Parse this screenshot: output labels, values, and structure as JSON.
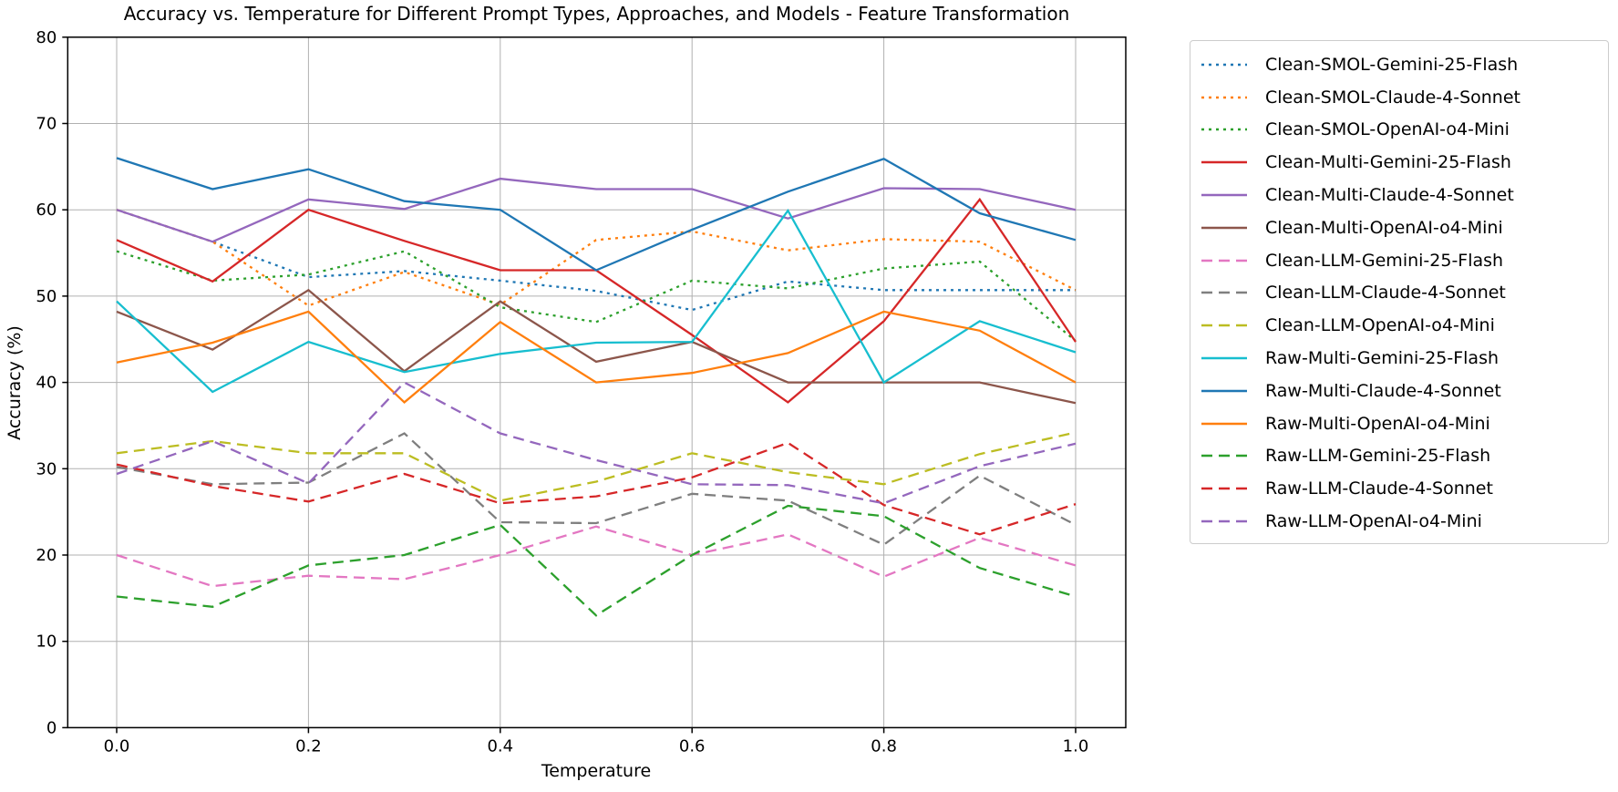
{
  "title": "Accuracy vs. Temperature for Different Prompt Types, Approaches, and Models - Feature Transformation",
  "chart_data": {
    "type": "line",
    "title": "Accuracy vs. Temperature for Different Prompt Types, Approaches, and Models - Feature Transformation",
    "xlabel": "Temperature",
    "ylabel": "Accuracy (%)",
    "ylim": [
      0,
      80
    ],
    "xlim": [
      -0.05,
      1.05
    ],
    "grid": true,
    "legend_position": "outside-right",
    "x_tick_labels": [
      "0.0",
      "0.2",
      "0.4",
      "0.6",
      "0.8",
      "1.0"
    ],
    "x_tick_values": [
      0.0,
      0.2,
      0.4,
      0.6,
      0.8,
      1.0
    ],
    "y_tick_labels": [
      "0",
      "10",
      "20",
      "30",
      "40",
      "50",
      "60",
      "70",
      "80"
    ],
    "y_tick_values": [
      0,
      10,
      20,
      30,
      40,
      50,
      60,
      70,
      80
    ],
    "x": [
      0.0,
      0.1,
      0.2,
      0.3,
      0.4,
      0.5,
      0.6,
      0.7,
      0.8,
      0.9,
      1.0
    ],
    "series": [
      {
        "name": "Clean-SMOL-Gemini-25-Flash",
        "color": "#1f77b4",
        "style": "dotted",
        "values": [
          60.0,
          56.3,
          52.2,
          52.9,
          51.8,
          50.6,
          48.4,
          51.7,
          50.7,
          50.7,
          50.7
        ]
      },
      {
        "name": "Clean-SMOL-Claude-4-Sonnet",
        "color": "#ff7f0e",
        "style": "dotted",
        "values": [
          60.0,
          56.3,
          48.9,
          52.8,
          49.0,
          56.5,
          57.5,
          55.3,
          56.6,
          56.3,
          50.7
        ]
      },
      {
        "name": "Clean-SMOL-OpenAI-o4-Mini",
        "color": "#2ca02c",
        "style": "dotted",
        "values": [
          55.2,
          51.8,
          52.5,
          55.2,
          48.7,
          47.0,
          51.8,
          50.9,
          53.2,
          54.0,
          44.8
        ]
      },
      {
        "name": "Clean-Multi-Gemini-25-Flash",
        "color": "#d62728",
        "style": "solid",
        "values": [
          56.5,
          51.7,
          60.0,
          56.4,
          53.0,
          53.0,
          45.5,
          37.7,
          47.1,
          61.2,
          44.7
        ]
      },
      {
        "name": "Clean-Multi-Claude-4-Sonnet",
        "color": "#9467bd",
        "style": "solid",
        "values": [
          60.0,
          56.3,
          61.2,
          60.1,
          63.6,
          62.4,
          62.4,
          59.0,
          62.5,
          62.4,
          60.0
        ]
      },
      {
        "name": "Clean-Multi-OpenAI-o4-Mini",
        "color": "#8c564b",
        "style": "solid",
        "values": [
          48.2,
          43.8,
          50.7,
          41.3,
          49.4,
          42.4,
          44.7,
          40.0,
          40.0,
          40.0,
          37.6
        ]
      },
      {
        "name": "Clean-LLM-Gemini-25-Flash",
        "color": "#e377c2",
        "style": "dashed",
        "values": [
          20.0,
          16.4,
          17.6,
          17.2,
          20.0,
          23.3,
          20.0,
          22.4,
          17.5,
          22.0,
          18.8
        ]
      },
      {
        "name": "Clean-LLM-Claude-4-Sonnet",
        "color": "#7f7f7f",
        "style": "dashed",
        "values": [
          30.2,
          28.2,
          28.4,
          34.1,
          23.8,
          23.7,
          27.1,
          26.3,
          21.2,
          29.2,
          23.5
        ]
      },
      {
        "name": "Clean-LLM-OpenAI-o4-Mini",
        "color": "#bcbd22",
        "style": "dashed",
        "values": [
          31.8,
          33.2,
          31.8,
          31.8,
          26.3,
          28.5,
          31.8,
          29.6,
          28.2,
          31.7,
          34.2
        ]
      },
      {
        "name": "Raw-Multi-Gemini-25-Flash",
        "color": "#17becf",
        "style": "solid",
        "values": [
          49.4,
          38.9,
          44.7,
          41.2,
          43.3,
          44.6,
          44.7,
          59.9,
          40.0,
          47.1,
          43.5
        ]
      },
      {
        "name": "Raw-Multi-Claude-4-Sonnet",
        "color": "#1f77b4",
        "style": "solid",
        "values": [
          66.0,
          62.4,
          64.7,
          61.0,
          60.0,
          53.0,
          57.7,
          62.1,
          65.9,
          59.6,
          56.5
        ]
      },
      {
        "name": "Raw-Multi-OpenAI-o4-Mini",
        "color": "#ff7f0e",
        "style": "solid",
        "values": [
          42.3,
          44.6,
          48.2,
          37.7,
          47.0,
          40.0,
          41.1,
          43.4,
          48.2,
          46.0,
          40.0
        ]
      },
      {
        "name": "Raw-LLM-Gemini-25-Flash",
        "color": "#2ca02c",
        "style": "dashed",
        "values": [
          15.2,
          14.0,
          18.8,
          20.0,
          23.5,
          13.0,
          20.0,
          25.7,
          24.5,
          18.5,
          15.2
        ]
      },
      {
        "name": "Raw-LLM-Claude-4-Sonnet",
        "color": "#d62728",
        "style": "dashed",
        "values": [
          30.5,
          28.0,
          26.2,
          29.4,
          26.0,
          26.8,
          29.0,
          33.0,
          25.8,
          22.4,
          25.9
        ]
      },
      {
        "name": "Raw-LLM-OpenAI-o4-Mini",
        "color": "#9467bd",
        "style": "dashed",
        "values": [
          29.4,
          33.2,
          28.3,
          40.0,
          34.1,
          31.0,
          28.2,
          28.1,
          26.0,
          30.3,
          32.9
        ]
      }
    ],
    "colors": {
      "grid": "#b0b0b0",
      "axes": "#000000",
      "legend_border": "#cccccc",
      "background": "#ffffff"
    }
  }
}
